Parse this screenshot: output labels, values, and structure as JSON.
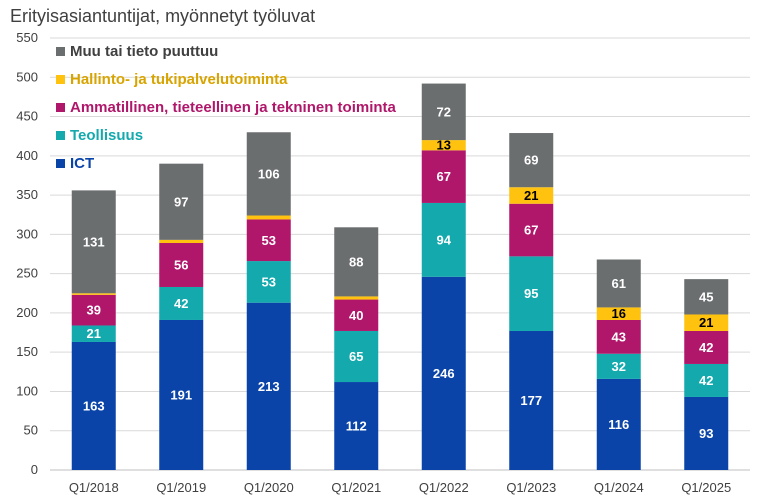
{
  "chart_data": {
    "type": "bar",
    "stacked": true,
    "title": "Erityisasiantuntijat, myönnetyt työluvat",
    "xlabel": "",
    "ylabel": "",
    "ylim": [
      0,
      550
    ],
    "yticks": [
      0,
      50,
      100,
      150,
      200,
      250,
      300,
      350,
      400,
      450,
      500,
      550
    ],
    "grid": true,
    "legend_position": "top-left",
    "categories": [
      "Q1/2018",
      "Q1/2019",
      "Q1/2020",
      "Q1/2021",
      "Q1/2022",
      "Q1/2023",
      "Q1/2024",
      "Q1/2025"
    ],
    "series": [
      {
        "name": "ICT",
        "color": "#0a44a8",
        "label_color": "#ffffff",
        "values": [
          163,
          191,
          213,
          112,
          246,
          177,
          116,
          93
        ]
      },
      {
        "name": "Teollisuus",
        "color": "#13a9ad",
        "label_color": "#ffffff",
        "values": [
          21,
          42,
          53,
          65,
          94,
          95,
          32,
          42
        ]
      },
      {
        "name": "Ammatillinen, tieteellinen ja tekninen toiminta",
        "color": "#b0176b",
        "label_color": "#ffffff",
        "values": [
          39,
          56,
          53,
          40,
          67,
          67,
          43,
          42
        ]
      },
      {
        "name": "Hallinto- ja tukipalvelutoiminta",
        "color": "#ffc20e",
        "label_color": "#000000",
        "values": [
          2,
          4,
          5,
          4,
          13,
          21,
          16,
          21
        ],
        "labels": [
          null,
          null,
          null,
          null,
          "13",
          "21",
          "16",
          "21"
        ]
      },
      {
        "name": "Muu tai tieto puuttuu",
        "color": "#6b6e6f",
        "label_color": "#ffffff",
        "values": [
          131,
          97,
          106,
          88,
          72,
          69,
          61,
          45
        ]
      }
    ],
    "legend_order": [
      4,
      3,
      2,
      1,
      0
    ],
    "legend_text_colors": {
      "Muu tai tieto puuttuu": "#404040",
      "Hallinto- ja tukipalvelutoiminta": "#d8a400",
      "Ammatillinen, tieteellinen ja tekninen toiminta": "#b0176b",
      "Teollisuus": "#13a9ad",
      "ICT": "#0a44a8"
    }
  }
}
